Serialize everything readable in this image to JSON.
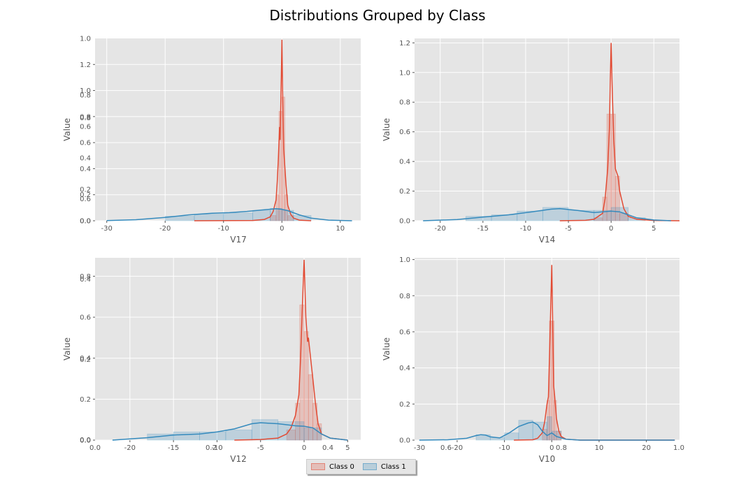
{
  "chart_data": {
    "title": "Distributions Grouped by Class",
    "legend": {
      "placement": "bottom-center",
      "entries": [
        {
          "name": "Class 0",
          "color": "#E24A33"
        },
        {
          "name": "Class 1",
          "color": "#348ABD"
        }
      ]
    },
    "charts": [
      {
        "type": "histogram+kde",
        "xlabel": "V17",
        "ylabel": "Value",
        "xlim": [
          -32,
          13.5
        ],
        "ylim": [
          0,
          1.4
        ],
        "xticks": [
          -30,
          -20,
          -10,
          0,
          10
        ],
        "yticks": [
          0.0,
          0.2,
          0.4,
          0.6,
          0.8,
          1.0,
          1.2
        ],
        "ghost_yticks": [
          "0.0",
          "0.2",
          "0.4",
          "0.6",
          "0.8",
          "1.0"
        ],
        "series": [
          {
            "name": "Class 0",
            "kde": [
              [
                -15,
                0
              ],
              [
                -5,
                0.002
              ],
              [
                -3,
                0.01
              ],
              [
                -2,
                0.03
              ],
              [
                -1.5,
                0.07
              ],
              [
                -1,
                0.16
              ],
              [
                -0.8,
                0.3
              ],
              [
                -0.6,
                0.48
              ],
              [
                -0.4,
                0.72
              ],
              [
                -0.3,
                0.62
              ],
              [
                -0.1,
                1.1
              ],
              [
                0,
                1.39
              ],
              [
                0.1,
                1.05
              ],
              [
                0.3,
                0.55
              ],
              [
                0.5,
                0.42
              ],
              [
                0.7,
                0.28
              ],
              [
                1,
                0.12
              ],
              [
                1.5,
                0.05
              ],
              [
                2,
                0.02
              ],
              [
                3,
                0.005
              ],
              [
                5,
                0
              ]
            ],
            "bars": [
              [
                -2,
                -1,
                0.04
              ],
              [
                -1,
                -0.5,
                0.2
              ],
              [
                -0.5,
                0,
                0.84
              ],
              [
                0,
                0.5,
                0.95
              ],
              [
                0.5,
                1,
                0.2
              ],
              [
                1,
                2,
                0.04
              ]
            ]
          },
          {
            "name": "Class 1",
            "kde": [
              [
                -30,
                0.001
              ],
              [
                -25,
                0.008
              ],
              [
                -20,
                0.025
              ],
              [
                -16,
                0.045
              ],
              [
                -12,
                0.058
              ],
              [
                -9,
                0.062
              ],
              [
                -6,
                0.072
              ],
              [
                -3,
                0.085
              ],
              [
                -1,
                0.092
              ],
              [
                0,
                0.088
              ],
              [
                1,
                0.078
              ],
              [
                3,
                0.045
              ],
              [
                5,
                0.02
              ],
              [
                8,
                0.005
              ],
              [
                12,
                0
              ]
            ],
            "bars": [
              [
                -20,
                -15,
                0.035
              ],
              [
                -15,
                -10,
                0.05
              ],
              [
                -10,
                -5,
                0.06
              ],
              [
                -5,
                -2,
                0.08
              ],
              [
                -2,
                0,
                0.095
              ],
              [
                0,
                2,
                0.08
              ],
              [
                2,
                5,
                0.04
              ]
            ]
          }
        ]
      },
      {
        "type": "histogram+kde",
        "xlabel": "V14",
        "ylabel": "Value",
        "xlim": [
          -23,
          8
        ],
        "ylim": [
          0,
          1.23
        ],
        "xticks": [
          -20,
          -15,
          -10,
          -5,
          0,
          5
        ],
        "yticks": [
          0.0,
          0.2,
          0.4,
          0.6,
          0.8,
          1.0,
          1.2
        ],
        "series": [
          {
            "name": "Class 0",
            "kde": [
              [
                -6,
                0
              ],
              [
                -3,
                0.003
              ],
              [
                -2,
                0.01
              ],
              [
                -1,
                0.05
              ],
              [
                -0.7,
                0.15
              ],
              [
                -0.4,
                0.35
              ],
              [
                -0.2,
                0.62
              ],
              [
                -0.1,
                0.95
              ],
              [
                0,
                1.2
              ],
              [
                0.1,
                0.95
              ],
              [
                0.3,
                0.55
              ],
              [
                0.5,
                0.35
              ],
              [
                0.8,
                0.3
              ],
              [
                1,
                0.2
              ],
              [
                1.5,
                0.08
              ],
              [
                2,
                0.03
              ],
              [
                3,
                0.01
              ],
              [
                5,
                0.002
              ],
              [
                8,
                0
              ]
            ],
            "bars": [
              [
                -2,
                -1,
                0.02
              ],
              [
                -1,
                -0.5,
                0.16
              ],
              [
                -0.5,
                0,
                0.72
              ],
              [
                0,
                0.5,
                0.72
              ],
              [
                0.5,
                1,
                0.3
              ],
              [
                1,
                2,
                0.05
              ]
            ]
          },
          {
            "name": "Class 1",
            "kde": [
              [
                -22,
                0
              ],
              [
                -18,
                0.008
              ],
              [
                -15,
                0.025
              ],
              [
                -12,
                0.04
              ],
              [
                -9,
                0.062
              ],
              [
                -7,
                0.078
              ],
              [
                -6,
                0.082
              ],
              [
                -4,
                0.07
              ],
              [
                -2,
                0.055
              ],
              [
                0,
                0.065
              ],
              [
                1,
                0.06
              ],
              [
                2,
                0.04
              ],
              [
                3,
                0.02
              ],
              [
                5,
                0.005
              ],
              [
                7,
                0
              ]
            ],
            "bars": [
              [
                -17,
                -14,
                0.03
              ],
              [
                -14,
                -11,
                0.04
              ],
              [
                -11,
                -8,
                0.065
              ],
              [
                -8,
                -5,
                0.09
              ],
              [
                -5,
                -2,
                0.07
              ],
              [
                -2,
                0,
                0.07
              ],
              [
                0,
                2,
                0.09
              ],
              [
                2,
                4,
                0.02
              ]
            ]
          }
        ]
      },
      {
        "type": "histogram+kde",
        "xlabel": "V12",
        "ylabel": "Value",
        "xlim": [
          -24,
          6.5
        ],
        "ylim": [
          0,
          0.89
        ],
        "xticks": [
          -20,
          -15,
          -10,
          -5,
          0,
          5
        ],
        "yticks": [
          0.0,
          0.2,
          0.4,
          0.6,
          0.8
        ],
        "ghost_yticks_left": [
          "0.0",
          "0.2",
          "0.4"
        ],
        "ghost_xticks": [
          "0.0",
          "0.2",
          "0.4"
        ],
        "series": [
          {
            "name": "Class 0",
            "kde": [
              [
                -8,
                0
              ],
              [
                -5,
                0.003
              ],
              [
                -3,
                0.01
              ],
              [
                -2,
                0.03
              ],
              [
                -1.5,
                0.06
              ],
              [
                -1,
                0.12
              ],
              [
                -0.6,
                0.22
              ],
              [
                -0.4,
                0.4
              ],
              [
                -0.2,
                0.65
              ],
              [
                0,
                0.88
              ],
              [
                0.2,
                0.6
              ],
              [
                0.4,
                0.48
              ],
              [
                0.5,
                0.5
              ],
              [
                0.7,
                0.42
              ],
              [
                1,
                0.3
              ],
              [
                1.3,
                0.18
              ],
              [
                1.6,
                0.08
              ],
              [
                2,
                0.03
              ],
              [
                3,
                0.01
              ],
              [
                5,
                0
              ]
            ],
            "bars": [
              [
                -2,
                -1,
                0.05
              ],
              [
                -1,
                -0.5,
                0.18
              ],
              [
                -0.5,
                0,
                0.66
              ],
              [
                0,
                0.5,
                0.53
              ],
              [
                0.5,
                1,
                0.32
              ],
              [
                1,
                1.5,
                0.18
              ],
              [
                1.5,
                2,
                0.08
              ]
            ]
          },
          {
            "name": "Class 1",
            "kde": [
              [
                -22,
                0
              ],
              [
                -18,
                0.012
              ],
              [
                -15,
                0.025
              ],
              [
                -12,
                0.03
              ],
              [
                -10,
                0.04
              ],
              [
                -8,
                0.055
              ],
              [
                -6,
                0.08
              ],
              [
                -5,
                0.085
              ],
              [
                -3,
                0.08
              ],
              [
                -1,
                0.07
              ],
              [
                0,
                0.068
              ],
              [
                1,
                0.06
              ],
              [
                2,
                0.03
              ],
              [
                3,
                0.01
              ],
              [
                5,
                0
              ]
            ],
            "bars": [
              [
                -18,
                -15,
                0.03
              ],
              [
                -15,
                -12,
                0.04
              ],
              [
                -12,
                -9,
                0.04
              ],
              [
                -9,
                -6,
                0.05
              ],
              [
                -6,
                -3,
                0.1
              ],
              [
                -3,
                0,
                0.09
              ],
              [
                0,
                2,
                0.06
              ]
            ]
          }
        ]
      },
      {
        "type": "histogram+kde",
        "xlabel": "V10",
        "ylabel": "Value",
        "xlim": [
          -29,
          27
        ],
        "ylim": [
          0,
          1.01
        ],
        "xticks": [
          -20,
          -10,
          0,
          10,
          20
        ],
        "yticks": [
          0.0,
          0.2,
          0.4,
          0.6,
          0.8,
          1.0
        ],
        "ghost_xticks": [
          "-30",
          "0.6",
          "0.8",
          "1.0"
        ],
        "series": [
          {
            "name": "Class 0",
            "kde": [
              [
                -8,
                0
              ],
              [
                -4,
                0.002
              ],
              [
                -3,
                0.01
              ],
              [
                -2,
                0.04
              ],
              [
                -1.5,
                0.1
              ],
              [
                -1,
                0.2
              ],
              [
                -0.7,
                0.24
              ],
              [
                -0.4,
                0.55
              ],
              [
                -0.2,
                0.75
              ],
              [
                0,
                0.97
              ],
              [
                0.2,
                0.65
              ],
              [
                0.4,
                0.3
              ],
              [
                0.6,
                0.25
              ],
              [
                1,
                0.12
              ],
              [
                1.5,
                0.05
              ],
              [
                2,
                0.02
              ],
              [
                3,
                0.005
              ],
              [
                6,
                0
              ],
              [
                26,
                0
              ]
            ],
            "bars": [
              [
                -2,
                -1,
                0.06
              ],
              [
                -1,
                -0.5,
                0.22
              ],
              [
                -0.5,
                0,
                0.66
              ],
              [
                0,
                0.5,
                0.66
              ],
              [
                0.5,
                1,
                0.22
              ],
              [
                1,
                2,
                0.05
              ]
            ]
          },
          {
            "name": "Class 1",
            "kde": [
              [
                -28,
                0
              ],
              [
                -22,
                0.002
              ],
              [
                -18,
                0.01
              ],
              [
                -16,
                0.025
              ],
              [
                -15,
                0.03
              ],
              [
                -14,
                0.028
              ],
              [
                -13,
                0.018
              ],
              [
                -11,
                0.012
              ],
              [
                -9,
                0.04
              ],
              [
                -7,
                0.075
              ],
              [
                -5,
                0.095
              ],
              [
                -4,
                0.1
              ],
              [
                -3,
                0.085
              ],
              [
                -2,
                0.05
              ],
              [
                -1,
                0.025
              ],
              [
                0,
                0.04
              ],
              [
                1,
                0.02
              ],
              [
                3,
                0.005
              ],
              [
                6,
                0
              ],
              [
                26,
                0
              ]
            ],
            "bars": [
              [
                -16,
                -13,
                0.03
              ],
              [
                -13,
                -10,
                0.015
              ],
              [
                -10,
                -7,
                0.04
              ],
              [
                -7,
                -4,
                0.11
              ],
              [
                -4,
                -1,
                0.1
              ],
              [
                -1,
                0,
                0.13
              ],
              [
                0,
                2,
                0.05
              ]
            ]
          }
        ]
      }
    ]
  }
}
